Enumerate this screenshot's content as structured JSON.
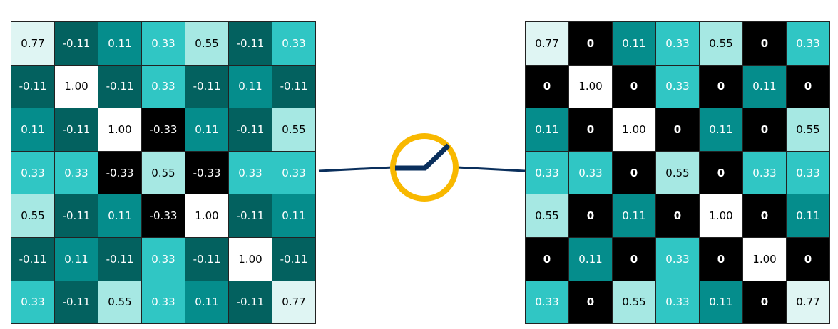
{
  "palette": {
    "1.00": "#ffffff",
    "0.77": "#dff5f3",
    "0.55": "#a6e8e3",
    "0.33": "#30c6c4",
    "0.11": "#058d8c",
    "-0.11": "#03615f",
    "-0.33": "#000000",
    "0": "#000000"
  },
  "line_color": "#0a2f5c",
  "circle_color": "#f8b800",
  "input_matrix": [
    [
      "0.77",
      "-0.11",
      "0.11",
      "0.33",
      "0.55",
      "-0.11",
      "0.33"
    ],
    [
      "-0.11",
      "1.00",
      "-0.11",
      "0.33",
      "-0.11",
      "0.11",
      "-0.11"
    ],
    [
      "0.11",
      "-0.11",
      "1.00",
      "-0.33",
      "0.11",
      "-0.11",
      "0.55"
    ],
    [
      "0.33",
      "0.33",
      "-0.33",
      "0.55",
      "-0.33",
      "0.33",
      "0.33"
    ],
    [
      "0.55",
      "-0.11",
      "0.11",
      "-0.33",
      "1.00",
      "-0.11",
      "0.11"
    ],
    [
      "-0.11",
      "0.11",
      "-0.11",
      "0.33",
      "-0.11",
      "1.00",
      "-0.11"
    ],
    [
      "0.33",
      "-0.11",
      "0.55",
      "0.33",
      "0.11",
      "-0.11",
      "0.77"
    ]
  ],
  "output_matrix": [
    [
      "0.77",
      "0",
      "0.11",
      "0.33",
      "0.55",
      "0",
      "0.33"
    ],
    [
      "0",
      "1.00",
      "0",
      "0.33",
      "0",
      "0.11",
      "0"
    ],
    [
      "0.11",
      "0",
      "1.00",
      "0",
      "0.11",
      "0",
      "0.55"
    ],
    [
      "0.33",
      "0.33",
      "0",
      "0.55",
      "0",
      "0.33",
      "0.33"
    ],
    [
      "0.55",
      "0",
      "0.11",
      "0",
      "1.00",
      "0",
      "0.11"
    ],
    [
      "0",
      "0.11",
      "0",
      "0.33",
      "0",
      "1.00",
      "0"
    ],
    [
      "0.33",
      "0",
      "0.55",
      "0.33",
      "0.11",
      "0",
      "0.77"
    ]
  ]
}
